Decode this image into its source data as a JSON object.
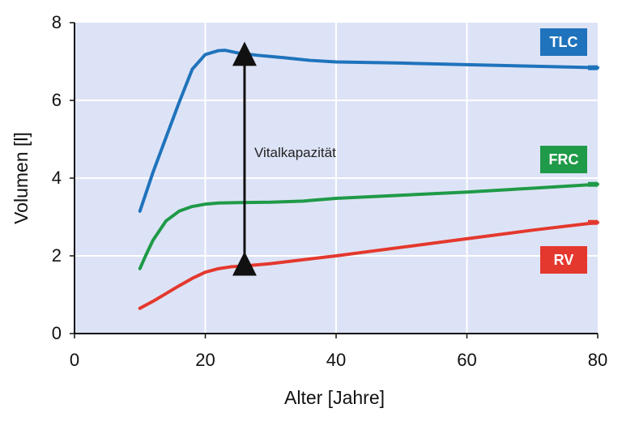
{
  "chart_data": {
    "type": "line",
    "title": "",
    "xlabel": "Alter  [Jahre]",
    "ylabel": "Volumen [l]",
    "xlim": [
      0,
      80
    ],
    "ylim": [
      0,
      8
    ],
    "xticks": [
      0,
      20,
      40,
      60,
      80
    ],
    "yticks": [
      0,
      2,
      4,
      6,
      8
    ],
    "grid": true,
    "colors": {
      "background": "#dde3f6",
      "grid": "#ffffff",
      "axis": "#111111"
    },
    "series": [
      {
        "name": "TLC",
        "color": "#1f73bc",
        "points": [
          [
            10,
            3.15
          ],
          [
            12,
            4.15
          ],
          [
            14,
            5.05
          ],
          [
            16,
            5.95
          ],
          [
            18,
            6.8
          ],
          [
            20,
            7.18
          ],
          [
            22,
            7.28
          ],
          [
            23,
            7.29
          ],
          [
            25,
            7.22
          ],
          [
            28,
            7.16
          ],
          [
            32,
            7.1
          ],
          [
            36,
            7.03
          ],
          [
            40,
            6.99
          ],
          [
            50,
            6.96
          ],
          [
            60,
            6.92
          ],
          [
            70,
            6.88
          ],
          [
            80,
            6.84
          ]
        ]
      },
      {
        "name": "FRC",
        "color": "#1f9a48",
        "points": [
          [
            10,
            1.67
          ],
          [
            11,
            2.05
          ],
          [
            12,
            2.4
          ],
          [
            14,
            2.9
          ],
          [
            16,
            3.15
          ],
          [
            18,
            3.27
          ],
          [
            20,
            3.33
          ],
          [
            22,
            3.36
          ],
          [
            25,
            3.37
          ],
          [
            30,
            3.38
          ],
          [
            35,
            3.41
          ],
          [
            40,
            3.48
          ],
          [
            50,
            3.56
          ],
          [
            60,
            3.64
          ],
          [
            70,
            3.74
          ],
          [
            80,
            3.84
          ]
        ]
      },
      {
        "name": "RV",
        "color": "#e4382e",
        "points": [
          [
            10,
            0.65
          ],
          [
            12,
            0.83
          ],
          [
            14,
            1.03
          ],
          [
            16,
            1.23
          ],
          [
            18,
            1.42
          ],
          [
            20,
            1.58
          ],
          [
            22,
            1.67
          ],
          [
            24,
            1.72
          ],
          [
            26,
            1.74
          ],
          [
            30,
            1.8
          ],
          [
            40,
            2.0
          ],
          [
            50,
            2.22
          ],
          [
            60,
            2.44
          ],
          [
            70,
            2.66
          ],
          [
            80,
            2.86
          ]
        ]
      }
    ],
    "annotations": [
      {
        "text": "Vitalkapazität",
        "x": 26,
        "y_from": 1.8,
        "y_to": 7.2
      }
    ]
  }
}
